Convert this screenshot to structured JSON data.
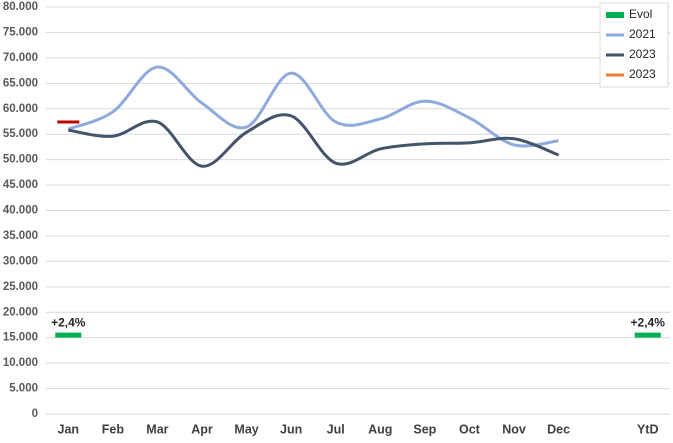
{
  "chart_data": {
    "type": "line",
    "categories": [
      "Jan",
      "Feb",
      "Mar",
      "Apr",
      "May",
      "Jun",
      "Jul",
      "Aug",
      "Sep",
      "Oct",
      "Nov",
      "Dec",
      null,
      "YtD"
    ],
    "ylim": [
      0,
      80000
    ],
    "yticks": [
      {
        "value": 0,
        "label": "0"
      },
      {
        "value": 5000,
        "label": "5.000"
      },
      {
        "value": 10000,
        "label": "10.000"
      },
      {
        "value": 15000,
        "label": "15.000"
      },
      {
        "value": 20000,
        "label": "20.000"
      },
      {
        "value": 25000,
        "label": "25.000"
      },
      {
        "value": 30000,
        "label": "30.000"
      },
      {
        "value": 35000,
        "label": "35.000"
      },
      {
        "value": 40000,
        "label": "40.000"
      },
      {
        "value": 45000,
        "label": "45.000"
      },
      {
        "value": 50000,
        "label": "50.000"
      },
      {
        "value": 55000,
        "label": "55.000"
      },
      {
        "value": 60000,
        "label": "60.000"
      },
      {
        "value": 65000,
        "label": "65.000"
      },
      {
        "value": 70000,
        "label": "70.000"
      },
      {
        "value": 75000,
        "label": "75.000"
      },
      {
        "value": 80000,
        "label": "80.000"
      }
    ],
    "grid": true,
    "smooth": true,
    "legend": "top-right",
    "series": [
      {
        "name": "Evol",
        "kind": "marker-label",
        "color": "#00B050",
        "marker_level": 15500,
        "values": [
          2.4,
          null,
          null,
          null,
          null,
          null,
          null,
          null,
          null,
          null,
          null,
          null,
          null,
          2.4
        ],
        "value_labels": [
          "+2,4%",
          null,
          null,
          null,
          null,
          null,
          null,
          null,
          null,
          null,
          null,
          null,
          null,
          "+2,4%"
        ]
      },
      {
        "name": "2021",
        "kind": "line",
        "color": "#8FAADC",
        "values": [
          56000,
          59400,
          68200,
          61100,
          56400,
          67000,
          57400,
          58000,
          61500,
          58200,
          52900,
          53700,
          null,
          null
        ]
      },
      {
        "name": "2023",
        "kind": "line",
        "color": "#44546A",
        "values": [
          55800,
          54600,
          57400,
          48700,
          55400,
          58600,
          49300,
          52100,
          53100,
          53300,
          54100,
          50900,
          null,
          null
        ]
      },
      {
        "name": "2023",
        "kind": "dash",
        "color": "#C00000",
        "legend_color": "#ED7D31",
        "values": [
          57400,
          null,
          null,
          null,
          null,
          null,
          null,
          null,
          null,
          null,
          null,
          null,
          null,
          null
        ]
      }
    ]
  }
}
